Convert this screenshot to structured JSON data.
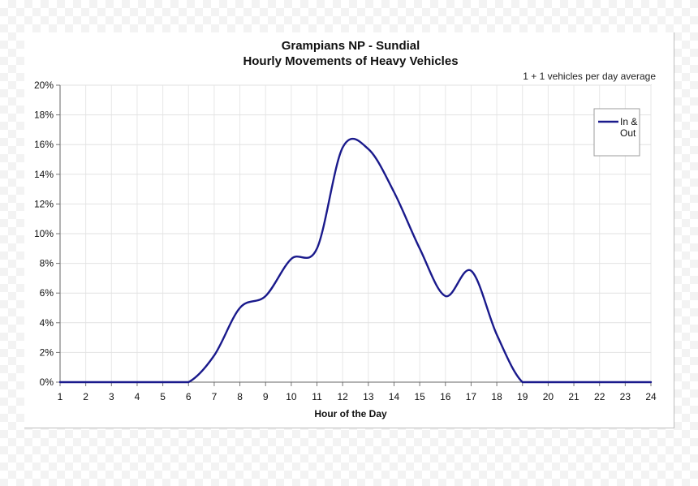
{
  "chart_data": {
    "type": "line",
    "title": "Grampians NP - Sundial",
    "subtitle": "Hourly Movements of Heavy Vehicles",
    "annotation": "1 + 1 vehicles per day average",
    "xlabel": "Hour of the Day",
    "ylabel": "",
    "x": [
      1,
      2,
      3,
      4,
      5,
      6,
      7,
      8,
      9,
      10,
      11,
      12,
      13,
      14,
      15,
      16,
      17,
      18,
      19,
      20,
      21,
      22,
      23,
      24
    ],
    "xlim": [
      1,
      24
    ],
    "ylim": [
      0,
      20
    ],
    "y_ticks": [
      "0%",
      "2%",
      "4%",
      "6%",
      "8%",
      "10%",
      "12%",
      "14%",
      "16%",
      "18%",
      "20%"
    ],
    "grid": true,
    "legend_position": "top-right",
    "series": [
      {
        "name": "In & Out",
        "color": "#1a1a8c",
        "values": [
          0,
          0,
          0,
          0,
          0,
          0,
          1.8,
          5.0,
          5.8,
          8.3,
          9.0,
          15.8,
          15.7,
          12.8,
          9.0,
          5.8,
          7.5,
          3.2,
          0,
          0,
          0,
          0,
          0,
          0
        ]
      }
    ]
  }
}
